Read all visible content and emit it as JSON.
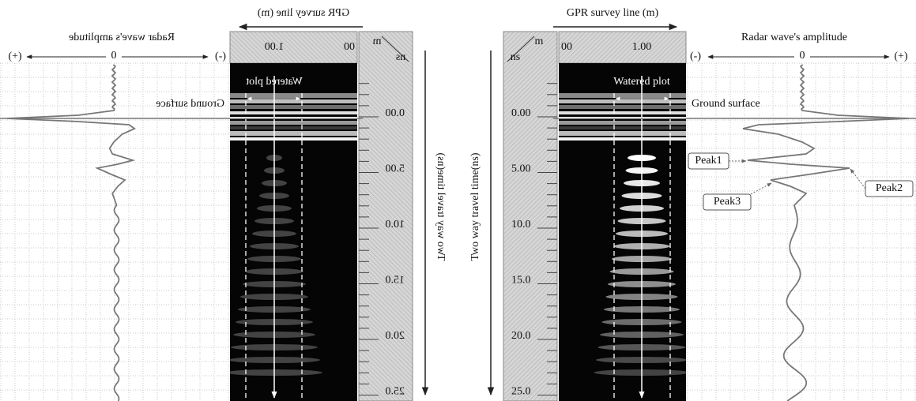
{
  "panels": [
    {
      "amplitude_label": "Radar wave's amplitude",
      "plus": "(+)",
      "zero": "0",
      "minus": "(-)",
      "survey_line_label": "GPR survey line (m)",
      "distance_tick_labels": [
        "00",
        "1.00"
      ],
      "unit_m": "m",
      "unit_ns": "ns",
      "watered_plot": "Watered plot",
      "ground_surface": "Ground surface",
      "time_tick_labels": [
        "0.00",
        "5.00",
        "10.0",
        "15.0",
        "20.0",
        "25.0"
      ],
      "time_axis_label": "Two way travel time(ns)"
    },
    {
      "amplitude_label": "Radar wave's amplitude",
      "plus": "(+)",
      "zero": "0",
      "minus": "(-)",
      "survey_line_label": "GPR survey line (m)",
      "distance_tick_labels": [
        "00",
        "1.00"
      ],
      "unit_m": "m",
      "unit_ns": "ns",
      "watered_plot": "Watered plot",
      "ground_surface": "Ground surface",
      "time_tick_labels": [
        "0.00",
        "5.00",
        "10.0",
        "15.0",
        "20.0",
        "25.0"
      ],
      "time_axis_label": "Two way travel time(ns)",
      "peaks": [
        "Peak1",
        "Peak2",
        "Peak3"
      ]
    }
  ]
}
